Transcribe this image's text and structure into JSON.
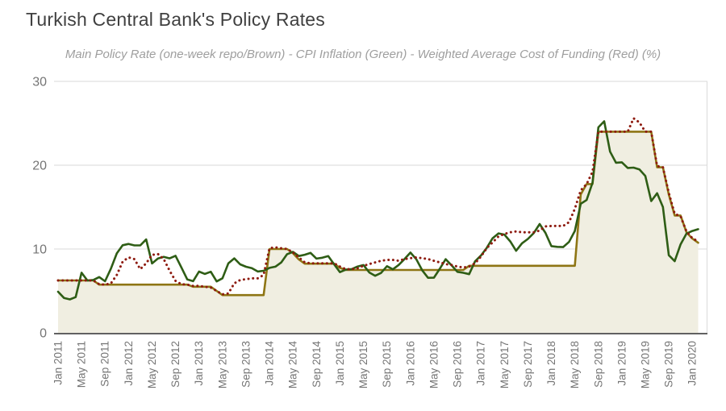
{
  "header": {
    "title": "Turkish Central Bank's Policy Rates",
    "subtitle": "Main Policy Rate (one-week repo/Brown) - CPI Inflation (Green) - Weighted Average Cost of Funding (Red) (%)"
  },
  "colors": {
    "policy_line": "#8e7514",
    "policy_fill": "#f0eee1",
    "cpi_line": "#2e5d15",
    "wacf_line": "#8e1b10",
    "grid": "#dadada",
    "axis": "#616161",
    "tick_text": "#757575",
    "title_text": "#404040",
    "subtitle_text": "#9e9e9e",
    "background": "#ffffff"
  },
  "chart_data": {
    "type": "line",
    "title": "Turkish Central Bank's Policy Rates",
    "subtitle": "Main Policy Rate (one-week repo/Brown) - CPI Inflation (Green) - Weighted Average Cost of Funding (Red) (%)",
    "x_frequency": "monthly",
    "x_start": "Jan 2011",
    "x_end": "Feb 2020",
    "ylim": [
      0,
      30
    ],
    "grid": true,
    "legend_position": "none",
    "y_axis": {
      "ticks": [
        0,
        10,
        20,
        30
      ]
    },
    "x_axis": {
      "tick_month_indices": [
        0,
        4,
        8,
        12,
        16,
        20,
        24,
        28,
        32,
        36,
        40,
        44,
        48,
        52,
        56,
        60,
        64,
        68,
        72,
        76,
        80,
        84,
        88,
        92,
        96,
        100,
        104,
        108
      ],
      "tick_labels": [
        "Jan 2011",
        "May 2011",
        "Sep 2011",
        "Jan 2012",
        "May 2012",
        "Sep 2012",
        "Jan 2013",
        "May 2013",
        "Sep 2013",
        "Jan 2014",
        "May 2014",
        "Sep 2014",
        "Jan 2015",
        "May 2015",
        "Sep 2015",
        "Jan 2016",
        "May 2016",
        "Sep 2016",
        "Jan 2017",
        "May 2017",
        "Sep 2017",
        "Jan 2018",
        "May 2018",
        "Sep 2018",
        "Jan 2019",
        "May 2019",
        "Sep 2019",
        "Jan 2020"
      ]
    },
    "series": [
      {
        "key": "policy_rate",
        "name": "Main Policy Rate (one-week repo)",
        "style": "solid stepped line with beige area fill to zero",
        "color": "#8e7514",
        "values": [
          6.25,
          6.25,
          6.25,
          6.25,
          6.25,
          6.25,
          6.25,
          5.75,
          5.75,
          5.75,
          5.75,
          5.75,
          5.75,
          5.75,
          5.75,
          5.75,
          5.75,
          5.75,
          5.75,
          5.75,
          5.75,
          5.75,
          5.75,
          5.5,
          5.5,
          5.5,
          5.5,
          5.0,
          4.5,
          4.5,
          4.5,
          4.5,
          4.5,
          4.5,
          4.5,
          4.5,
          10,
          10,
          10,
          10,
          9.5,
          8.75,
          8.25,
          8.25,
          8.25,
          8.25,
          8.25,
          8.25,
          7.75,
          7.5,
          7.5,
          7.5,
          7.5,
          7.5,
          7.5,
          7.5,
          7.5,
          7.5,
          7.5,
          7.5,
          7.5,
          7.5,
          7.5,
          7.5,
          7.5,
          7.5,
          7.5,
          7.5,
          7.5,
          7.5,
          8,
          8,
          8,
          8,
          8,
          8,
          8,
          8,
          8,
          8,
          8,
          8,
          8,
          8,
          8,
          8,
          8,
          8,
          8,
          16.5,
          17.75,
          17.75,
          24,
          24,
          24,
          24,
          24,
          24,
          24,
          24,
          24,
          24,
          19.75,
          19.75,
          16.5,
          14,
          14,
          12,
          11.25,
          10.75
        ]
      },
      {
        "key": "cpi",
        "name": "CPI Inflation",
        "style": "solid line",
        "color": "#2e5d15",
        "values": [
          4.9,
          4.16,
          3.99,
          4.26,
          7.17,
          6.24,
          6.31,
          6.65,
          6.15,
          7.66,
          9.48,
          10.45,
          10.61,
          10.43,
          10.43,
          11.14,
          8.28,
          8.87,
          9.07,
          8.88,
          9.19,
          7.8,
          6.37,
          6.16,
          7.31,
          7.03,
          7.29,
          6.13,
          6.51,
          8.3,
          8.88,
          8.17,
          7.88,
          7.71,
          7.32,
          7.4,
          7.75,
          7.89,
          8.39,
          9.38,
          9.66,
          9.16,
          9.32,
          9.54,
          8.86,
          8.96,
          9.15,
          8.17,
          7.24,
          7.55,
          7.61,
          7.91,
          8.09,
          7.2,
          6.81,
          7.14,
          7.95,
          7.58,
          8.1,
          8.81,
          9.58,
          8.78,
          7.46,
          6.57,
          6.58,
          7.64,
          8.79,
          8.05,
          7.28,
          7.16,
          7.0,
          8.53,
          9.22,
          10.13,
          11.29,
          11.87,
          11.72,
          10.9,
          9.79,
          10.68,
          11.2,
          11.9,
          12.98,
          11.92,
          10.35,
          10.26,
          10.23,
          10.85,
          12.15,
          15.39,
          15.85,
          17.9,
          24.52,
          25.24,
          21.62,
          20.3,
          20.35,
          19.67,
          19.71,
          19.5,
          18.71,
          15.72,
          16.65,
          15.01,
          9.26,
          8.55,
          10.56,
          11.84,
          12.15,
          12.37
        ]
      },
      {
        "key": "wacf",
        "name": "Weighted Average Cost of Funding",
        "style": "dotted line",
        "color": "#8e1b10",
        "values": [
          6.25,
          6.25,
          6.25,
          6.25,
          6.25,
          6.25,
          6.25,
          5.8,
          5.75,
          5.9,
          6.9,
          8.5,
          9.0,
          8.8,
          7.6,
          8.3,
          9.3,
          9.4,
          8.8,
          7.4,
          6.2,
          5.8,
          5.75,
          5.6,
          5.6,
          5.5,
          5.4,
          5.0,
          4.6,
          4.7,
          5.9,
          6.3,
          6.4,
          6.5,
          6.5,
          6.9,
          10.1,
          10.2,
          10.1,
          10.0,
          9.6,
          9.0,
          8.4,
          8.3,
          8.3,
          8.3,
          8.3,
          8.3,
          7.9,
          7.6,
          7.6,
          7.7,
          8.0,
          8.2,
          8.4,
          8.6,
          8.7,
          8.7,
          8.6,
          8.8,
          8.9,
          9.0,
          8.9,
          8.8,
          8.6,
          8.4,
          8.2,
          8.1,
          7.9,
          7.8,
          7.9,
          8.3,
          9.1,
          10.1,
          10.8,
          11.5,
          11.8,
          12.0,
          12.1,
          12.0,
          12.0,
          12.0,
          12.2,
          12.7,
          12.75,
          12.75,
          12.75,
          13.2,
          14.8,
          17.0,
          17.75,
          19.2,
          24.0,
          24.0,
          24.0,
          24.0,
          24.0,
          24.0,
          25.6,
          25.1,
          24.0,
          24.0,
          19.9,
          19.75,
          16.7,
          14.2,
          13.9,
          12.1,
          11.3,
          10.9
        ]
      }
    ]
  }
}
